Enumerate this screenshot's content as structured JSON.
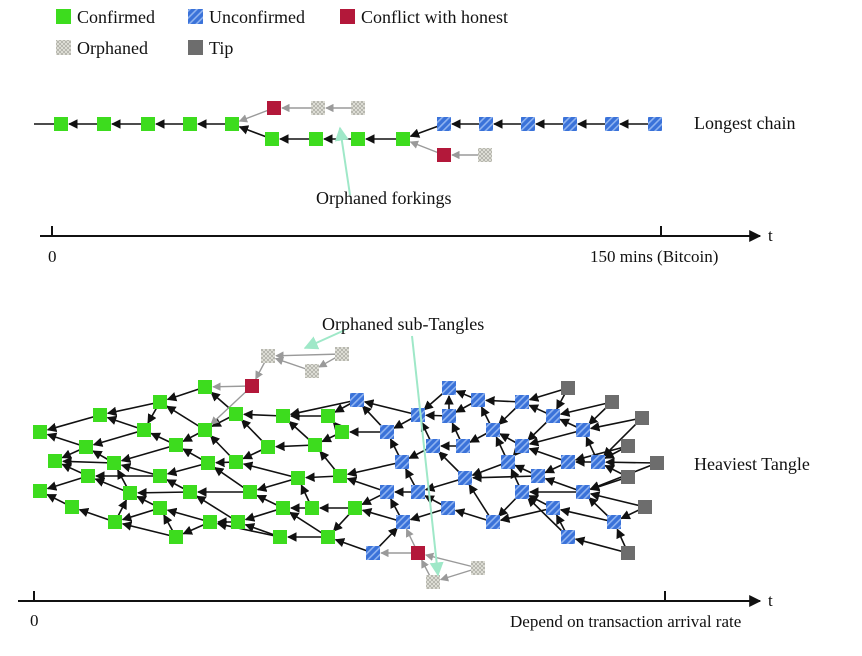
{
  "legend": {
    "confirmed": "Confirmed",
    "unconfirmed": "Unconfirmed",
    "conflict": "Conflict with honest",
    "orphaned": "Orphaned",
    "tip": "Tip"
  },
  "top_panel": {
    "title": "Longest chain",
    "annotation": "Orphaned forkings",
    "axis_var": "t",
    "axis_start": "0",
    "axis_end": "150 mins (Bitcoin)"
  },
  "bottom_panel": {
    "title": "Heaviest Tangle",
    "annotation": "Orphaned sub-Tangles",
    "axis_var": "t",
    "axis_start": "0",
    "axis_end": "Depend on transaction arrival rate"
  },
  "colors": {
    "confirmed": "#3ddc1e",
    "unconfirmed": "#3a72d9",
    "conflict": "#b3183a",
    "orphaned": "#d9d9d0",
    "tip": "#6d6d6d",
    "annotation_line": "#9fe8c8"
  }
}
